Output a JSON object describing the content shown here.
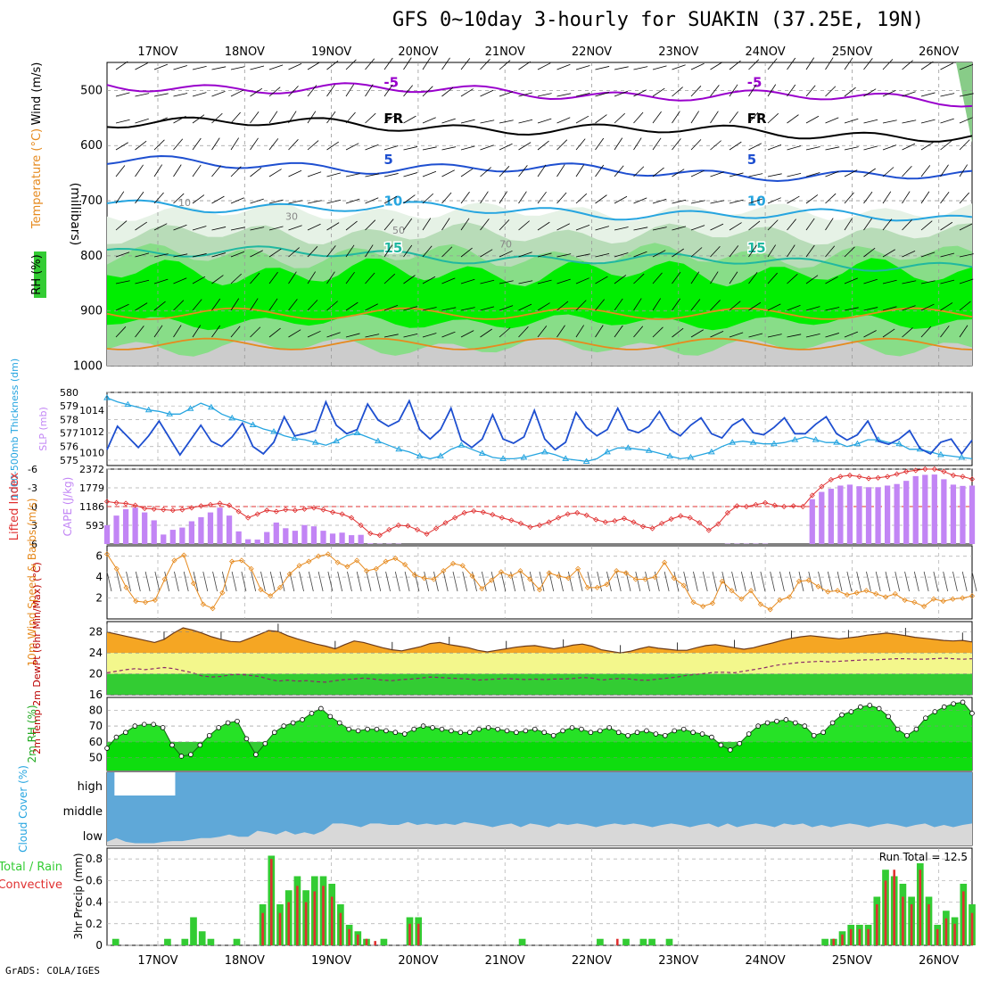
{
  "title": "GFS 0~10day 3-hourly for SUAKIN (37.25E, 19N)",
  "footer": "GrADS: COLA/IGES",
  "days": [
    "17NOV",
    "18NOV",
    "19NOV",
    "20NOV",
    "21NOV",
    "22NOV",
    "23NOV",
    "24NOV",
    "25NOV",
    "26NOV"
  ],
  "colors": {
    "purple": "#9900cc",
    "blue": "#1e4fd0",
    "cyan": "#26a5e0",
    "teal": "#20b8a0",
    "orange": "#e68a1e",
    "red": "#e03030",
    "lime": "#00ee00",
    "green": "#33cc33",
    "lightgreen": "#88dd88",
    "cloud": "#5fa8d8",
    "lowcloud": "#d8d8d8",
    "violet": "#c285f5"
  },
  "chart_data": [
    {
      "type": "heatmap",
      "panel": "upper-air",
      "ylabel_parts": [
        "RH (%)",
        "Temperature (°C)",
        "Wind (m/s)",
        "(millibars)"
      ],
      "yticks": [
        "500",
        "600",
        "700",
        "800",
        "900",
        "1000"
      ],
      "ylim": [
        1000,
        450
      ],
      "temperature_contours": [
        {
          "label": "-5",
          "pressure": 490,
          "color": "#9900cc"
        },
        {
          "label": "FR",
          "pressure": 555,
          "color": "#000000"
        },
        {
          "label": "5",
          "pressure": 630,
          "color": "#1e4fd0"
        },
        {
          "label": "10",
          "pressure": 705,
          "color": "#26a5e0"
        },
        {
          "label": "15",
          "pressure": 790,
          "color": "#20b8a0"
        }
      ],
      "rh_labels": [
        "10",
        "30",
        "50",
        "70"
      ]
    },
    {
      "type": "line",
      "panel": "thickness-slp",
      "ylabel_left": "1000-500mb Thickness (dm)",
      "ylabel_right": "SLP (mb)",
      "yticks_thickness": [
        "580",
        "579",
        "578",
        "577",
        "576",
        "575"
      ],
      "yticks_slp": [
        "1014",
        "1012",
        "1010"
      ],
      "thickness_dm": [
        579.6,
        579.3,
        579.1,
        578.9,
        578.7,
        578.6,
        578.4,
        578.4,
        578.8,
        579.2,
        578.9,
        578.4,
        578.1,
        577.9,
        577.6,
        577.3,
        577.1,
        576.8,
        576.6,
        576.5,
        576.3,
        576.1,
        576.4,
        576.8,
        577.0,
        576.7,
        576.4,
        576.1,
        575.8,
        575.6,
        575.3,
        575.1,
        575.3,
        575.8,
        576.1,
        575.8,
        575.5,
        575.2,
        575.1,
        575.1,
        575.2,
        575.4,
        575.6,
        575.4,
        575.1,
        575.0,
        574.9,
        575.1,
        575.6,
        575.9,
        575.9,
        575.8,
        575.7,
        575.5,
        575.3,
        575.1,
        575.2,
        575.4,
        575.6,
        576.0,
        576.3,
        576.4,
        576.3,
        576.2,
        576.2,
        576.3,
        576.5,
        576.7,
        576.5,
        576.3,
        576.3,
        576.0,
        576.2,
        576.5,
        576.5,
        576.3,
        576.2,
        575.8,
        575.8,
        575.6,
        575.4,
        575.3,
        575.2,
        575.1
      ],
      "slp_mb": [
        1010.3,
        1012.5,
        1011.5,
        1010.5,
        1011.6,
        1013.0,
        1011.4,
        1009.8,
        1011.2,
        1012.6,
        1011.1,
        1010.6,
        1011.5,
        1012.8,
        1010.6,
        1009.9,
        1011.0,
        1013.4,
        1011.6,
        1011.8,
        1012.1,
        1014.8,
        1012.6,
        1011.8,
        1012.2,
        1014.6,
        1013.1,
        1012.5,
        1013.0,
        1014.9,
        1012.2,
        1011.3,
        1012.2,
        1014.2,
        1011.2,
        1010.5,
        1011.3,
        1013.6,
        1011.3,
        1010.9,
        1011.5,
        1014.0,
        1011.3,
        1010.3,
        1011.0,
        1013.8,
        1012.4,
        1011.6,
        1012.2,
        1014.2,
        1012.2,
        1011.9,
        1012.5,
        1013.9,
        1012.2,
        1011.6,
        1012.6,
        1013.3,
        1011.8,
        1011.4,
        1012.6,
        1013.2,
        1011.9,
        1011.7,
        1012.4,
        1013.3,
        1011.8,
        1011.8,
        1012.7,
        1013.4,
        1011.8,
        1011.2,
        1011.7,
        1013.0,
        1011.1,
        1010.8,
        1011.3,
        1012.1,
        1010.4,
        1009.9,
        1011.0,
        1011.3,
        1009.9,
        1011.2
      ]
    },
    {
      "type": "bar",
      "panel": "lifted-index-cape",
      "ylabel_left": "Lifted Index",
      "ylabel_right": "CAPE (J/kg)",
      "yticks_li": [
        "-6",
        "-3",
        "0",
        "3",
        "6"
      ],
      "yticks_cape": [
        "2372",
        "1779",
        "1186",
        "593"
      ],
      "cape": [
        593,
        900,
        1100,
        1150,
        1000,
        750,
        300,
        450,
        520,
        720,
        850,
        1000,
        1150,
        900,
        400,
        150,
        140,
        380,
        680,
        500,
        420,
        600,
        560,
        420,
        330,
        360,
        280,
        290,
        20,
        10,
        10,
        10,
        0,
        0,
        0,
        0,
        0,
        0,
        0,
        0,
        0,
        0,
        0,
        0,
        0,
        0,
        0,
        0,
        0,
        0,
        0,
        0,
        0,
        0,
        0,
        0,
        0,
        0,
        0,
        0,
        0,
        0,
        0,
        0,
        0,
        0,
        10,
        10,
        10,
        10,
        10,
        0,
        0,
        0,
        0,
        1420,
        1650,
        1750,
        1850,
        1880,
        1830,
        1800,
        1800,
        1850,
        1900,
        2000,
        2150,
        2190,
        2200,
        2050,
        1880,
        1840,
        1850
      ],
      "lifted_index": [
        -0.8,
        -0.6,
        -0.5,
        -0.2,
        0.3,
        0.4,
        0.5,
        0.6,
        0.5,
        0.2,
        -0.1,
        -0.3,
        -0.5,
        -0.2,
        0.8,
        1.8,
        1.2,
        0.6,
        0.8,
        0.5,
        0.6,
        0.4,
        0.2,
        0.5,
        0.9,
        1.2,
        1.8,
        3.0,
        4.3,
        4.6,
        3.7,
        3.0,
        3.1,
        3.7,
        4.4,
        3.5,
        2.6,
        1.8,
        1.0,
        0.7,
        0.9,
        1.3,
        1.8,
        2.2,
        2.7,
        3.3,
        3.0,
        2.5,
        1.8,
        1.2,
        1.0,
        1.4,
        2.1,
        2.5,
        2.3,
        1.9,
        2.5,
        3.2,
        3.5,
        2.7,
        2.0,
        1.5,
        1.8,
        2.6,
        3.8,
        2.8,
        1.0,
        -0.1,
        0.0,
        -0.3,
        -0.6,
        -0.2,
        0.0,
        -0.1,
        0.0,
        -1.8,
        -3.2,
        -4.3,
        -4.8,
        -5.0,
        -4.8,
        -4.5,
        -4.6,
        -4.8,
        -5.2,
        -5.6,
        -5.8,
        -6.0,
        -6.0,
        -5.6,
        -5.0,
        -4.8,
        -4.4
      ]
    },
    {
      "type": "line",
      "panel": "10m-wind",
      "ylabel": "10m Wind Speed & Barbs (m/s)",
      "yticks": [
        "6",
        "4",
        "2"
      ],
      "ylim": [
        0,
        7
      ],
      "speed": [
        6.2,
        4.8,
        3.0,
        1.7,
        1.6,
        1.8,
        3.8,
        5.6,
        6.1,
        3.4,
        1.4,
        1.0,
        2.5,
        5.5,
        5.6,
        4.8,
        2.8,
        2.2,
        3.0,
        4.3,
        5.1,
        5.5,
        6.0,
        6.2,
        5.4,
        5.0,
        5.6,
        4.6,
        4.8,
        5.5,
        5.8,
        5.2,
        4.2,
        3.9,
        3.8,
        4.6,
        5.3,
        5.1,
        4.1,
        2.9,
        3.7,
        4.5,
        4.1,
        4.6,
        3.8,
        2.8,
        4.4,
        4.1,
        3.9,
        4.8,
        3.0,
        3.0,
        3.3,
        4.6,
        4.4,
        3.8,
        3.8,
        4.0,
        5.4,
        3.9,
        3.2,
        1.6,
        1.2,
        1.5,
        3.6,
        2.7,
        1.9,
        2.7,
        1.4,
        0.9,
        1.8,
        2.1,
        3.6,
        3.7,
        3.1,
        2.6,
        2.7,
        2.3,
        2.5,
        2.7,
        2.4,
        2.1,
        2.4,
        1.8,
        1.6,
        1.2,
        1.9,
        1.7,
        1.9,
        2.0,
        2.2
      ]
    },
    {
      "type": "area",
      "panel": "2m-temp",
      "ylabel": "2m Temp 2m DewPt (6hr Min/Max) (°C)",
      "yticks": [
        "28",
        "24",
        "20",
        "16"
      ],
      "ylim": [
        16,
        30
      ],
      "temp": [
        28.0,
        27.6,
        27.2,
        26.8,
        26.4,
        26.0,
        26.6,
        27.8,
        28.8,
        28.4,
        27.8,
        27.1,
        26.6,
        26.2,
        26.1,
        26.8,
        27.5,
        28.3,
        28.1,
        27.3,
        26.7,
        26.2,
        25.7,
        25.3,
        24.8,
        25.6,
        26.3,
        26.0,
        25.5,
        25.0,
        24.6,
        24.4,
        24.8,
        25.2,
        25.8,
        26.0,
        25.6,
        25.3,
        25.0,
        24.5,
        24.2,
        24.5,
        24.8,
        25.1,
        25.3,
        25.4,
        25.1,
        24.8,
        25.1,
        25.5,
        25.7,
        25.3,
        24.6,
        24.3,
        24.0,
        24.3,
        24.8,
        25.2,
        24.9,
        24.7,
        24.5,
        24.5,
        25.0,
        25.4,
        25.6,
        25.3,
        25.0,
        24.7,
        25.0,
        25.5,
        25.9,
        26.4,
        26.8,
        27.1,
        27.3,
        27.1,
        26.9,
        26.7,
        26.9,
        27.1,
        27.4,
        27.6,
        27.8,
        27.6,
        27.3,
        27.0,
        26.8,
        26.6,
        26.4,
        26.3,
        26.4,
        26.1
      ],
      "dewpt": [
        20.2,
        20.5,
        20.8,
        21.0,
        20.8,
        21.0,
        21.2,
        21.0,
        20.6,
        20.2,
        19.6,
        19.4,
        19.5,
        19.8,
        19.9,
        19.7,
        19.5,
        19.0,
        18.6,
        18.8,
        18.6,
        18.7,
        18.5,
        18.4,
        18.7,
        18.9,
        19.0,
        19.2,
        19.0,
        18.8,
        18.7,
        18.9,
        19.0,
        19.2,
        19.4,
        19.3,
        19.2,
        19.1,
        19.0,
        18.8,
        18.9,
        19.0,
        19.1,
        19.0,
        18.9,
        19.0,
        18.9,
        19.0,
        19.0,
        19.1,
        19.3,
        19.2,
        18.8,
        19.0,
        19.1,
        19.0,
        18.8,
        18.8,
        19.0,
        19.2,
        19.4,
        19.7,
        19.9,
        20.1,
        20.3,
        20.3,
        20.2,
        20.5,
        20.8,
        21.1,
        21.5,
        21.8,
        22.0,
        22.2,
        22.3,
        22.4,
        22.3,
        22.4,
        22.5,
        22.6,
        22.7,
        22.7,
        22.8,
        22.9,
        22.9,
        22.8,
        22.8,
        22.9,
        23.0,
        22.9,
        22.8,
        22.9
      ]
    },
    {
      "type": "area",
      "panel": "2m-rh",
      "ylabel": "2m RH (%)",
      "yticks": [
        "80",
        "70",
        "60",
        "50"
      ],
      "ylim": [
        42,
        88
      ],
      "rh": [
        56,
        63,
        66,
        70,
        71,
        71,
        69,
        58,
        51,
        52,
        58,
        64,
        69,
        72,
        73,
        62,
        52,
        59,
        66,
        70,
        72,
        74,
        78,
        81,
        76,
        72,
        68,
        67,
        68,
        68,
        67,
        66,
        65,
        68,
        70,
        69,
        68,
        67,
        66,
        66,
        68,
        69,
        68,
        67,
        66,
        67,
        68,
        66,
        64,
        67,
        69,
        68,
        66,
        67,
        69,
        66,
        64,
        66,
        67,
        65,
        64,
        67,
        68,
        66,
        65,
        63,
        58,
        55,
        59,
        65,
        70,
        72,
        73,
        74,
        72,
        70,
        64,
        66,
        72,
        77,
        79,
        82,
        83,
        81,
        76,
        68,
        64,
        68,
        75,
        79,
        82,
        84,
        85,
        78
      ]
    },
    {
      "type": "area",
      "panel": "cloud-cover",
      "ylabel": "Cloud Cover (%)",
      "ytick_labels": [
        "high",
        "middle",
        "low"
      ],
      "low_cloud": [
        5,
        10,
        5,
        3,
        3,
        3,
        5,
        6,
        6,
        8,
        10,
        10,
        12,
        15,
        12,
        12,
        20,
        18,
        15,
        20,
        15,
        18,
        15,
        20,
        30,
        30,
        28,
        25,
        30,
        30,
        28,
        28,
        32,
        28,
        30,
        28,
        30,
        28,
        32,
        30,
        28,
        25,
        28,
        30,
        25,
        30,
        28,
        25,
        30,
        28,
        30,
        28,
        25,
        28,
        30,
        28,
        30,
        28,
        25,
        28,
        30,
        28,
        25,
        28,
        30,
        25,
        30,
        25,
        28,
        30,
        28,
        25,
        30,
        28,
        30,
        25,
        28,
        25,
        28,
        30,
        28,
        25,
        28,
        30,
        28,
        25,
        28,
        30,
        25,
        28,
        25,
        28,
        30
      ],
      "gaps": [
        {
          "from": 0.5,
          "to": 1.2
        }
      ]
    },
    {
      "type": "bar",
      "panel": "precip",
      "ylabel_parts": [
        "Total / Rain",
        "Convective",
        "3hr Precip (mm)"
      ],
      "yticks": [
        "0.8",
        "0.6",
        "0.4",
        "0.2",
        "0"
      ],
      "ylim": [
        0,
        0.9
      ],
      "annotation": "Run Total = 12.5",
      "total": [
        0,
        0.06,
        0,
        0,
        0,
        0,
        0,
        0.06,
        0,
        0.06,
        0.26,
        0.13,
        0.06,
        0,
        0,
        0.06,
        0,
        0,
        0.38,
        0.83,
        0.38,
        0.51,
        0.64,
        0.51,
        0.64,
        0.64,
        0.57,
        0.38,
        0.19,
        0.13,
        0.06,
        0,
        0.06,
        0,
        0,
        0.26,
        0.26,
        0,
        0,
        0,
        0,
        0,
        0,
        0,
        0,
        0,
        0,
        0,
        0.06,
        0,
        0,
        0,
        0,
        0,
        0,
        0,
        0,
        0.06,
        0,
        0,
        0.06,
        0,
        0.06,
        0.06,
        0,
        0.06,
        0,
        0,
        0,
        0,
        0,
        0,
        0,
        0,
        0,
        0,
        0,
        0,
        0,
        0,
        0,
        0,
        0,
        0.06,
        0.06,
        0.13,
        0.19,
        0.19,
        0.19,
        0.45,
        0.7,
        0.64,
        0.57,
        0.45,
        0.76,
        0.45,
        0.19,
        0.32,
        0.26,
        0.57,
        0.38
      ],
      "convective": [
        0,
        0,
        0,
        0,
        0,
        0,
        0,
        0,
        0,
        0,
        0,
        0,
        0,
        0,
        0,
        0,
        0,
        0,
        0.3,
        0.8,
        0.3,
        0.4,
        0.55,
        0.4,
        0.5,
        0.55,
        0.45,
        0.3,
        0.15,
        0.1,
        0.06,
        0.04,
        0,
        0,
        0,
        0.2,
        0.2,
        0,
        0,
        0,
        0,
        0,
        0,
        0,
        0,
        0,
        0,
        0,
        0,
        0,
        0,
        0,
        0,
        0,
        0,
        0,
        0,
        0,
        0,
        0.06,
        0,
        0,
        0,
        0,
        0,
        0,
        0,
        0,
        0,
        0,
        0,
        0,
        0,
        0,
        0,
        0,
        0,
        0,
        0,
        0,
        0,
        0,
        0,
        0,
        0.06,
        0.1,
        0.15,
        0.15,
        0.15,
        0.38,
        0.6,
        0.7,
        0.45,
        0.38,
        0.7,
        0.38,
        0.15,
        0.25,
        0.2,
        0.5,
        0.3
      ]
    }
  ]
}
